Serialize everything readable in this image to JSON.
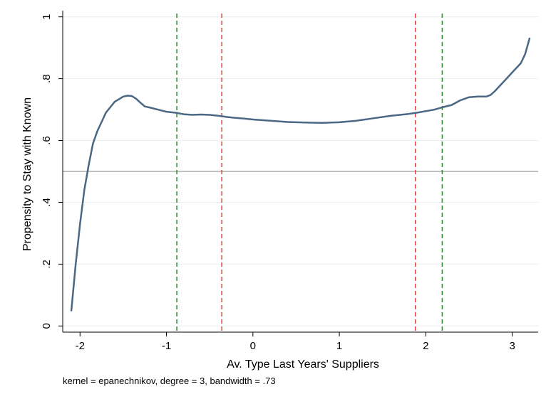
{
  "chart_data": {
    "type": "line",
    "title": "",
    "xlabel": "Av. Type Last Years' Suppliers",
    "ylabel": "Propensity to Stay with Known",
    "xlim": [
      -2.2,
      3.3
    ],
    "ylim": [
      -0.02,
      1.02
    ],
    "x_ticks": [
      -2,
      -1,
      0,
      1,
      2,
      3
    ],
    "x_tick_labels": [
      "-2",
      "-1",
      "0",
      "1",
      "2",
      "3"
    ],
    "y_ticks": [
      0,
      0.2,
      0.4,
      0.6,
      0.8,
      1
    ],
    "y_tick_labels": [
      "0",
      ".2",
      ".4",
      ".6",
      ".8",
      "1"
    ],
    "grid": true,
    "series": [
      {
        "x": [
          -2.1,
          -2.05,
          -2.0,
          -1.95,
          -1.9,
          -1.85,
          -1.8,
          -1.7,
          -1.6,
          -1.5,
          -1.45,
          -1.4,
          -1.35,
          -1.3,
          -1.25,
          -1.2,
          -1.1,
          -1.0,
          -0.9,
          -0.8,
          -0.7,
          -0.6,
          -0.5,
          -0.4,
          -0.3,
          -0.2,
          -0.1,
          0.0,
          0.2,
          0.4,
          0.6,
          0.8,
          1.0,
          1.2,
          1.4,
          1.6,
          1.8,
          1.9,
          2.0,
          2.1,
          2.2,
          2.3,
          2.4,
          2.5,
          2.6,
          2.7,
          2.75,
          2.8,
          2.9,
          3.0,
          3.1,
          3.15,
          3.2
        ],
        "y": [
          0.05,
          0.2,
          0.33,
          0.44,
          0.52,
          0.59,
          0.63,
          0.69,
          0.725,
          0.742,
          0.745,
          0.744,
          0.735,
          0.722,
          0.71,
          0.707,
          0.7,
          0.693,
          0.69,
          0.685,
          0.683,
          0.684,
          0.683,
          0.68,
          0.676,
          0.673,
          0.671,
          0.668,
          0.664,
          0.66,
          0.658,
          0.657,
          0.659,
          0.664,
          0.672,
          0.68,
          0.686,
          0.69,
          0.695,
          0.7,
          0.708,
          0.715,
          0.73,
          0.74,
          0.742,
          0.742,
          0.747,
          0.76,
          0.79,
          0.82,
          0.85,
          0.88,
          0.93
        ],
        "color": "#4a6784"
      }
    ],
    "reference_lines": {
      "horizontal": [
        {
          "y": 0.5,
          "color": "#9a9a9a"
        }
      ],
      "vertical": [
        {
          "x": -0.88,
          "color": "#2e8b2e",
          "style": "dashed"
        },
        {
          "x": -0.36,
          "color": "#e0403a",
          "style": "dashed"
        },
        {
          "x": 1.88,
          "color": "#e0403a",
          "style": "dashed"
        },
        {
          "x": 2.19,
          "color": "#2e8b2e",
          "style": "dashed"
        }
      ]
    },
    "note": "kernel = epanechnikov, degree = 3, bandwidth = .73"
  }
}
